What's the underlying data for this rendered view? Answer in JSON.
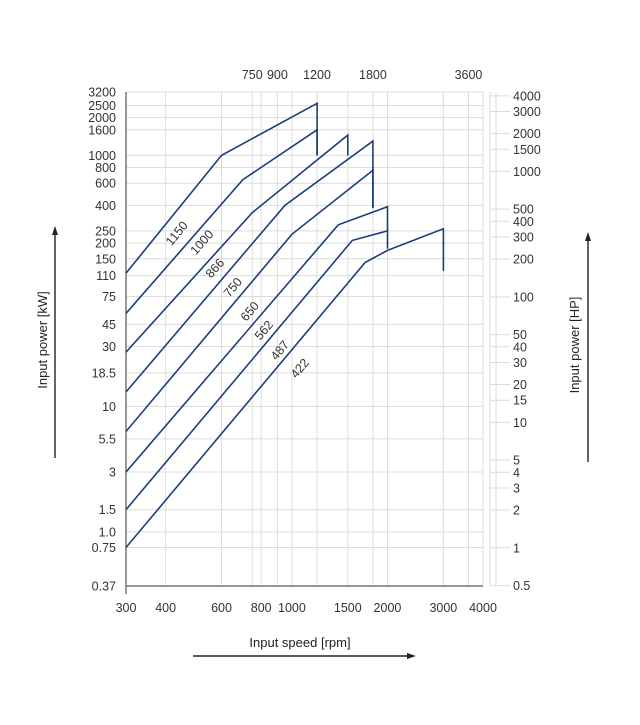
{
  "chart_data": {
    "type": "line",
    "title": "",
    "xlabel": "Input speed [rpm]",
    "ylabel": "Input power [kW]",
    "ylabel_right": "Input power [HP]",
    "x_scale": "log",
    "y_scale": "log",
    "xlim": [
      300,
      4000
    ],
    "ylim": [
      0.37,
      3200
    ],
    "grid": true,
    "legend": "inline labels along lines",
    "x_ticks_bottom": [
      "300",
      "400",
      "600",
      "800",
      "1000",
      "1500",
      "2000",
      "3000",
      "4000"
    ],
    "x_ticks_top": [
      "750",
      "900",
      "1200",
      "1800",
      "3600"
    ],
    "y_ticks_left": [
      "3200",
      "2500",
      "2000",
      "1600",
      "1000",
      "800",
      "600",
      "400",
      "250",
      "200",
      "150",
      "110",
      "75",
      "45",
      "30",
      "18.5",
      "10",
      "5.5",
      "3",
      "1.5",
      "1.0",
      "0.75",
      "0.37"
    ],
    "y_ticks_right": [
      "4000",
      "3000",
      "2000",
      "1500",
      "1000",
      "500",
      "400",
      "300",
      "200",
      "100",
      "50",
      "40",
      "30",
      "20",
      "15",
      "10",
      "5",
      "4",
      "3",
      "2",
      "1",
      "0.5"
    ],
    "series": [
      {
        "name": "1150",
        "points": [
          [
            300,
            115
          ],
          [
            600,
            1000
          ],
          [
            1200,
            2600
          ],
          [
            1200,
            1000
          ]
        ]
      },
      {
        "name": "1000",
        "points": [
          [
            300,
            55
          ],
          [
            700,
            640
          ],
          [
            1200,
            1600
          ],
          [
            1200,
            1000
          ]
        ]
      },
      {
        "name": "866",
        "points": [
          [
            300,
            27
          ],
          [
            750,
            350
          ],
          [
            1500,
            1450
          ],
          [
            1500,
            1000
          ]
        ]
      },
      {
        "name": "750",
        "points": [
          [
            300,
            13
          ],
          [
            950,
            400
          ],
          [
            1800,
            1300
          ],
          [
            1800,
            380
          ]
        ]
      },
      {
        "name": "650",
        "points": [
          [
            300,
            6.3
          ],
          [
            1000,
            235
          ],
          [
            1800,
            760
          ],
          [
            1800,
            380
          ]
        ]
      },
      {
        "name": "562",
        "points": [
          [
            300,
            3
          ],
          [
            1400,
            280
          ],
          [
            2000,
            390
          ],
          [
            2000,
            180
          ]
        ]
      },
      {
        "name": "487",
        "points": [
          [
            300,
            1.5
          ],
          [
            1550,
            210
          ],
          [
            2000,
            250
          ]
        ]
      },
      {
        "name": "422",
        "points": [
          [
            300,
            0.75
          ],
          [
            1700,
            140
          ],
          [
            2000,
            175
          ],
          [
            3000,
            260
          ],
          [
            3000,
            120
          ]
        ]
      }
    ]
  },
  "axes": {
    "x_title": "Input speed [rpm]",
    "y_left_title": "Input power [kW]",
    "y_right_title": "Input power [HP]"
  }
}
